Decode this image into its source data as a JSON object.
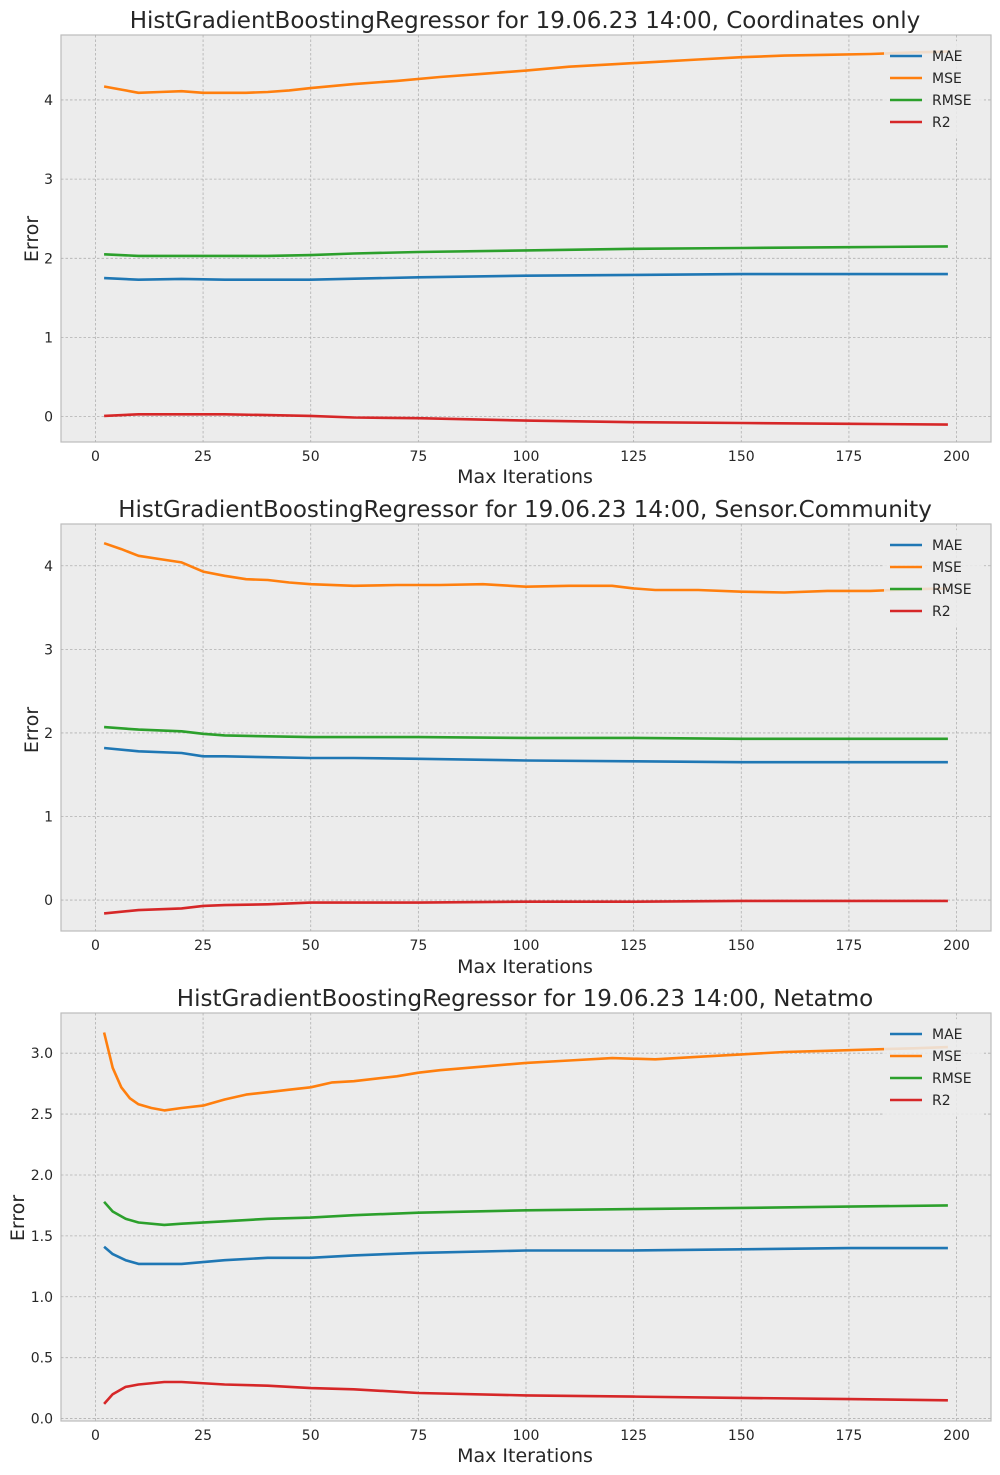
{
  "colors": {
    "MAE": "#1f77b4",
    "MSE": "#ff7f0e",
    "RMSE": "#2ca02c",
    "R2": "#d62728"
  },
  "chart_data": [
    {
      "type": "line",
      "title": "HistGradientBoostingRegressor for 19.06.23 14:00, Coordinates only",
      "xlabel": "Max Iterations",
      "ylabel": "Error",
      "xticks": [
        "0",
        "25",
        "50",
        "75",
        "100",
        "125",
        "150",
        "175",
        "200"
      ],
      "yticks": [
        "0",
        "1",
        "2",
        "3",
        "4"
      ],
      "xlim": [
        -8,
        208
      ],
      "ylim": [
        -0.32,
        4.82
      ],
      "grid": true,
      "legend": "top-right",
      "series": [
        {
          "name": "MAE",
          "points": [
            [
              2,
              1.75
            ],
            [
              10,
              1.73
            ],
            [
              20,
              1.74
            ],
            [
              30,
              1.73
            ],
            [
              40,
              1.73
            ],
            [
              50,
              1.73
            ],
            [
              75,
              1.76
            ],
            [
              100,
              1.78
            ],
            [
              125,
              1.79
            ],
            [
              150,
              1.8
            ],
            [
              175,
              1.8
            ],
            [
              198,
              1.8
            ]
          ]
        },
        {
          "name": "MSE",
          "points": [
            [
              2,
              4.17
            ],
            [
              6,
              4.13
            ],
            [
              10,
              4.09
            ],
            [
              15,
              4.1
            ],
            [
              20,
              4.11
            ],
            [
              25,
              4.09
            ],
            [
              30,
              4.09
            ],
            [
              35,
              4.09
            ],
            [
              40,
              4.1
            ],
            [
              45,
              4.12
            ],
            [
              50,
              4.15
            ],
            [
              60,
              4.2
            ],
            [
              70,
              4.24
            ],
            [
              80,
              4.29
            ],
            [
              90,
              4.33
            ],
            [
              100,
              4.37
            ],
            [
              110,
              4.42
            ],
            [
              120,
              4.45
            ],
            [
              130,
              4.48
            ],
            [
              140,
              4.51
            ],
            [
              150,
              4.54
            ],
            [
              160,
              4.56
            ],
            [
              170,
              4.57
            ],
            [
              180,
              4.58
            ],
            [
              190,
              4.6
            ],
            [
              198,
              4.61
            ]
          ]
        },
        {
          "name": "RMSE",
          "points": [
            [
              2,
              2.05
            ],
            [
              10,
              2.03
            ],
            [
              20,
              2.03
            ],
            [
              30,
              2.03
            ],
            [
              40,
              2.03
            ],
            [
              50,
              2.04
            ],
            [
              60,
              2.06
            ],
            [
              75,
              2.08
            ],
            [
              100,
              2.1
            ],
            [
              125,
              2.12
            ],
            [
              150,
              2.13
            ],
            [
              175,
              2.14
            ],
            [
              198,
              2.15
            ]
          ]
        },
        {
          "name": "R2",
          "points": [
            [
              2,
              0.01
            ],
            [
              10,
              0.03
            ],
            [
              20,
              0.03
            ],
            [
              30,
              0.03
            ],
            [
              40,
              0.02
            ],
            [
              50,
              0.01
            ],
            [
              60,
              -0.01
            ],
            [
              75,
              -0.02
            ],
            [
              100,
              -0.05
            ],
            [
              125,
              -0.07
            ],
            [
              150,
              -0.08
            ],
            [
              175,
              -0.09
            ],
            [
              198,
              -0.1
            ]
          ]
        }
      ]
    },
    {
      "type": "line",
      "title": "HistGradientBoostingRegressor for 19.06.23 14:00, Sensor.Community",
      "xlabel": "Max Iterations",
      "ylabel": "Error",
      "xticks": [
        "0",
        "25",
        "50",
        "75",
        "100",
        "125",
        "150",
        "175",
        "200"
      ],
      "yticks": [
        "0",
        "1",
        "2",
        "3",
        "4"
      ],
      "xlim": [
        -8,
        208
      ],
      "ylim": [
        -0.37,
        4.5
      ],
      "grid": true,
      "legend": "top-right",
      "series": [
        {
          "name": "MAE",
          "points": [
            [
              2,
              1.82
            ],
            [
              10,
              1.78
            ],
            [
              20,
              1.76
            ],
            [
              25,
              1.72
            ],
            [
              30,
              1.72
            ],
            [
              40,
              1.71
            ],
            [
              50,
              1.7
            ],
            [
              60,
              1.7
            ],
            [
              75,
              1.69
            ],
            [
              100,
              1.67
            ],
            [
              125,
              1.66
            ],
            [
              150,
              1.65
            ],
            [
              175,
              1.65
            ],
            [
              198,
              1.65
            ]
          ]
        },
        {
          "name": "MSE",
          "points": [
            [
              2,
              4.27
            ],
            [
              6,
              4.2
            ],
            [
              10,
              4.12
            ],
            [
              15,
              4.08
            ],
            [
              20,
              4.04
            ],
            [
              25,
              3.93
            ],
            [
              30,
              3.88
            ],
            [
              35,
              3.84
            ],
            [
              40,
              3.83
            ],
            [
              45,
              3.8
            ],
            [
              50,
              3.78
            ],
            [
              60,
              3.76
            ],
            [
              70,
              3.77
            ],
            [
              80,
              3.77
            ],
            [
              90,
              3.78
            ],
            [
              100,
              3.75
            ],
            [
              110,
              3.76
            ],
            [
              120,
              3.76
            ],
            [
              125,
              3.73
            ],
            [
              130,
              3.71
            ],
            [
              140,
              3.71
            ],
            [
              150,
              3.69
            ],
            [
              160,
              3.68
            ],
            [
              170,
              3.7
            ],
            [
              180,
              3.7
            ],
            [
              190,
              3.72
            ],
            [
              198,
              3.73
            ]
          ]
        },
        {
          "name": "RMSE",
          "points": [
            [
              2,
              2.07
            ],
            [
              10,
              2.04
            ],
            [
              20,
              2.02
            ],
            [
              25,
              1.99
            ],
            [
              30,
              1.97
            ],
            [
              40,
              1.96
            ],
            [
              50,
              1.95
            ],
            [
              60,
              1.95
            ],
            [
              75,
              1.95
            ],
            [
              100,
              1.94
            ],
            [
              125,
              1.94
            ],
            [
              150,
              1.93
            ],
            [
              175,
              1.93
            ],
            [
              198,
              1.93
            ]
          ]
        },
        {
          "name": "R2",
          "points": [
            [
              2,
              -0.16
            ],
            [
              10,
              -0.12
            ],
            [
              20,
              -0.1
            ],
            [
              25,
              -0.07
            ],
            [
              30,
              -0.06
            ],
            [
              40,
              -0.05
            ],
            [
              50,
              -0.03
            ],
            [
              60,
              -0.03
            ],
            [
              75,
              -0.03
            ],
            [
              100,
              -0.02
            ],
            [
              125,
              -0.02
            ],
            [
              150,
              -0.01
            ],
            [
              175,
              -0.01
            ],
            [
              198,
              -0.01
            ]
          ]
        }
      ]
    },
    {
      "type": "line",
      "title": "HistGradientBoostingRegressor for 19.06.23 14:00, Netatmo",
      "xlabel": "Max Iterations",
      "ylabel": "Error",
      "xticks": [
        "0",
        "25",
        "50",
        "75",
        "100",
        "125",
        "150",
        "175",
        "200"
      ],
      "yticks": [
        "0.0",
        "0.5",
        "1.0",
        "1.5",
        "2.0",
        "2.5",
        "3.0"
      ],
      "xlim": [
        -8,
        208
      ],
      "ylim": [
        -0.02,
        3.33
      ],
      "grid": true,
      "legend": "top-right",
      "series": [
        {
          "name": "MAE",
          "points": [
            [
              2,
              1.41
            ],
            [
              4,
              1.35
            ],
            [
              7,
              1.3
            ],
            [
              10,
              1.27
            ],
            [
              15,
              1.27
            ],
            [
              20,
              1.27
            ],
            [
              30,
              1.3
            ],
            [
              40,
              1.32
            ],
            [
              50,
              1.32
            ],
            [
              60,
              1.34
            ],
            [
              75,
              1.36
            ],
            [
              100,
              1.38
            ],
            [
              125,
              1.38
            ],
            [
              150,
              1.39
            ],
            [
              175,
              1.4
            ],
            [
              198,
              1.4
            ]
          ]
        },
        {
          "name": "MSE",
          "points": [
            [
              2,
              3.17
            ],
            [
              4,
              2.88
            ],
            [
              6,
              2.72
            ],
            [
              8,
              2.63
            ],
            [
              10,
              2.58
            ],
            [
              13,
              2.55
            ],
            [
              16,
              2.53
            ],
            [
              20,
              2.55
            ],
            [
              25,
              2.57
            ],
            [
              30,
              2.62
            ],
            [
              35,
              2.66
            ],
            [
              40,
              2.68
            ],
            [
              45,
              2.7
            ],
            [
              50,
              2.72
            ],
            [
              55,
              2.76
            ],
            [
              60,
              2.77
            ],
            [
              70,
              2.81
            ],
            [
              75,
              2.84
            ],
            [
              80,
              2.86
            ],
            [
              90,
              2.89
            ],
            [
              100,
              2.92
            ],
            [
              110,
              2.94
            ],
            [
              120,
              2.96
            ],
            [
              130,
              2.95
            ],
            [
              140,
              2.97
            ],
            [
              150,
              2.99
            ],
            [
              160,
              3.01
            ],
            [
              170,
              3.02
            ],
            [
              180,
              3.03
            ],
            [
              190,
              3.04
            ],
            [
              198,
              3.05
            ]
          ]
        },
        {
          "name": "RMSE",
          "points": [
            [
              2,
              1.78
            ],
            [
              4,
              1.7
            ],
            [
              7,
              1.64
            ],
            [
              10,
              1.61
            ],
            [
              16,
              1.59
            ],
            [
              20,
              1.6
            ],
            [
              30,
              1.62
            ],
            [
              40,
              1.64
            ],
            [
              50,
              1.65
            ],
            [
              60,
              1.67
            ],
            [
              75,
              1.69
            ],
            [
              100,
              1.71
            ],
            [
              125,
              1.72
            ],
            [
              150,
              1.73
            ],
            [
              175,
              1.74
            ],
            [
              198,
              1.75
            ]
          ]
        },
        {
          "name": "R2",
          "points": [
            [
              2,
              0.12
            ],
            [
              4,
              0.2
            ],
            [
              7,
              0.26
            ],
            [
              10,
              0.28
            ],
            [
              16,
              0.3
            ],
            [
              20,
              0.3
            ],
            [
              30,
              0.28
            ],
            [
              40,
              0.27
            ],
            [
              50,
              0.25
            ],
            [
              60,
              0.24
            ],
            [
              75,
              0.21
            ],
            [
              100,
              0.19
            ],
            [
              125,
              0.18
            ],
            [
              150,
              0.17
            ],
            [
              175,
              0.16
            ],
            [
              198,
              0.15
            ]
          ]
        }
      ]
    }
  ]
}
